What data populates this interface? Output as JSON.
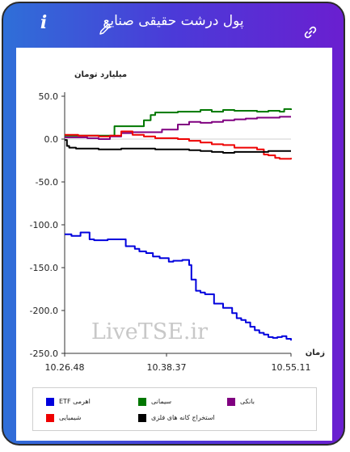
{
  "window": {
    "title": "پول درشت حقیقی صنایع",
    "info_icon": "i"
  },
  "icons": [
    "info-icon",
    "pencil-icon",
    "link-icon"
  ],
  "colors": {
    "frame_left": "#2f6fd8",
    "frame_right": "#6a1fd0"
  },
  "watermark": "LiveTSE.ir",
  "chart_data": {
    "type": "line",
    "ylabel": "میلیارد تومان",
    "xlabel": "زمان",
    "ylim": [
      -250,
      50
    ],
    "yticks": [
      "50.0",
      "0.0",
      "-50.0",
      "-100.0",
      "-150.0",
      "-200.0",
      "-250.0"
    ],
    "ytick_values": [
      50,
      0,
      -50,
      -100,
      -150,
      -200,
      -250
    ],
    "xticks": [
      "10.26.48",
      "10.38.37",
      "10.55.11"
    ],
    "xtick_values": [
      0,
      45,
      100
    ],
    "grid": false,
    "legend_position": "bottom",
    "series": [
      {
        "name": "اهرمی ETF",
        "color": "#0000dd",
        "x": [
          0,
          3,
          6,
          7,
          10,
          11,
          13,
          16,
          19,
          22,
          25,
          27,
          29,
          31,
          33,
          36,
          39,
          42,
          44,
          46,
          48,
          50,
          52,
          54,
          55,
          56,
          58,
          60,
          62,
          64,
          66,
          68,
          70,
          72,
          74,
          76,
          78,
          80,
          82,
          84,
          86,
          88,
          90,
          92,
          94,
          96,
          98,
          100
        ],
        "y": [
          -111,
          -113,
          -113,
          -109,
          -109,
          -117,
          -118,
          -118,
          -117,
          -117,
          -117,
          -125,
          -125,
          -128,
          -131,
          -133,
          -137,
          -139,
          -139,
          -143,
          -142,
          -142,
          -141,
          -141,
          -147,
          -164,
          -177,
          -179,
          -181,
          -181,
          -192,
          -192,
          -197,
          -197,
          -203,
          -209,
          -211,
          -214,
          -219,
          -223,
          -226,
          -228,
          -231,
          -232,
          -231,
          -230,
          -233,
          -235
        ]
      },
      {
        "name": "سیمانی",
        "color": "#007700",
        "x": [
          0,
          10,
          16,
          20,
          22,
          30,
          35,
          38,
          40,
          45,
          50,
          55,
          60,
          65,
          70,
          75,
          80,
          85,
          90,
          95,
          97,
          100
        ],
        "y": [
          4,
          4,
          4,
          4,
          15,
          15,
          22,
          28,
          31,
          31,
          32,
          32,
          34,
          32,
          34,
          33,
          33,
          32,
          33,
          32,
          35,
          34
        ]
      },
      {
        "name": "بانکی",
        "color": "#800080",
        "x": [
          0,
          5,
          10,
          15,
          20,
          25,
          30,
          35,
          40,
          43,
          45,
          48,
          50,
          55,
          60,
          65,
          70,
          75,
          80,
          85,
          90,
          95,
          100
        ],
        "y": [
          2,
          2,
          1,
          0,
          3,
          7,
          8,
          8,
          8,
          11,
          11,
          11,
          17,
          20,
          19,
          20,
          22,
          23,
          24,
          25,
          25,
          26,
          26
        ]
      },
      {
        "name": "شیمیایی",
        "color": "#ee0000",
        "x": [
          0,
          3,
          6,
          10,
          15,
          20,
          25,
          30,
          35,
          40,
          45,
          50,
          55,
          60,
          65,
          70,
          75,
          80,
          85,
          88,
          90,
          93,
          95,
          98,
          100
        ],
        "y": [
          5,
          5,
          4,
          4,
          3,
          4,
          9,
          5,
          3,
          1,
          1,
          0,
          -2,
          -4,
          -6,
          -7,
          -10,
          -10,
          -12,
          -18,
          -19,
          -22,
          -23,
          -23,
          -22
        ]
      },
      {
        "name": "استخراج کانه های فلزی",
        "color": "#000000",
        "x": [
          0,
          1,
          2,
          5,
          10,
          15,
          20,
          25,
          30,
          35,
          40,
          45,
          50,
          55,
          60,
          65,
          70,
          75,
          80,
          85,
          90,
          95,
          100
        ],
        "y": [
          -1,
          -8,
          -10,
          -11,
          -11,
          -12,
          -12,
          -11,
          -11,
          -11,
          -12,
          -12,
          -12,
          -13,
          -14,
          -15,
          -16,
          -15,
          -15,
          -15,
          -14,
          -14,
          -14
        ]
      }
    ]
  }
}
